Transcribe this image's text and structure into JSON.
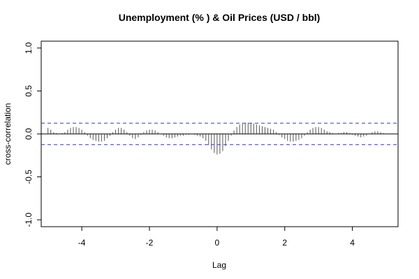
{
  "chart_data": {
    "type": "bar",
    "title": "Unemployment (% ) & Oil Prices (USD / bbl)",
    "xlabel": "Lag",
    "ylabel": "cross-correlation",
    "xlim": [
      -5.2,
      5.35
    ],
    "ylim": [
      -1.08,
      1.08
    ],
    "x_ticks": [
      -4,
      -2,
      0,
      2,
      4
    ],
    "y_ticks": [
      -1.0,
      -0.5,
      0.0,
      0.5,
      1.0
    ],
    "x_tick_labels": [
      "-4",
      "-2",
      "0",
      "2",
      "4"
    ],
    "y_tick_labels": [
      "-1.0",
      "-0.5",
      "0.0",
      "0.5",
      "1.0"
    ],
    "confidence_limit": 0.125,
    "colors": {
      "bars": "#555555",
      "confidence": "#3b3bd6",
      "axis": "#000000"
    },
    "series": [
      {
        "name": "cross-correlation",
        "x": [
          -5.0,
          -4.917,
          -4.833,
          -4.75,
          -4.667,
          -4.583,
          -4.5,
          -4.417,
          -4.333,
          -4.25,
          -4.167,
          -4.083,
          -4.0,
          -3.917,
          -3.833,
          -3.75,
          -3.667,
          -3.583,
          -3.5,
          -3.417,
          -3.333,
          -3.25,
          -3.167,
          -3.083,
          -3.0,
          -2.917,
          -2.833,
          -2.75,
          -2.667,
          -2.583,
          -2.5,
          -2.417,
          -2.333,
          -2.25,
          -2.167,
          -2.083,
          -2.0,
          -1.917,
          -1.833,
          -1.75,
          -1.667,
          -1.583,
          -1.5,
          -1.417,
          -1.333,
          -1.25,
          -1.167,
          -1.083,
          -1.0,
          -0.917,
          -0.833,
          -0.75,
          -0.667,
          -0.583,
          -0.5,
          -0.417,
          -0.333,
          -0.25,
          -0.167,
          -0.083,
          0.0,
          0.083,
          0.167,
          0.25,
          0.333,
          0.417,
          0.5,
          0.583,
          0.667,
          0.75,
          0.833,
          0.917,
          1.0,
          1.083,
          1.167,
          1.25,
          1.333,
          1.417,
          1.5,
          1.583,
          1.667,
          1.75,
          1.833,
          1.917,
          2.0,
          2.083,
          2.167,
          2.25,
          2.333,
          2.417,
          2.5,
          2.583,
          2.667,
          2.75,
          2.833,
          2.917,
          3.0,
          3.083,
          3.167,
          3.25,
          3.333,
          3.417,
          3.5,
          3.583,
          3.667,
          3.75,
          3.833,
          3.917,
          4.0,
          4.083,
          4.167,
          4.25,
          4.333,
          4.417,
          4.5,
          4.583,
          4.667,
          4.75,
          4.833,
          4.917,
          5.0
        ],
        "values": [
          0.07,
          0.05,
          0.02,
          0.01,
          0.0,
          0.01,
          0.02,
          0.05,
          0.07,
          0.08,
          0.08,
          0.07,
          0.05,
          0.02,
          -0.02,
          -0.05,
          -0.07,
          -0.08,
          -0.09,
          -0.09,
          -0.08,
          -0.05,
          -0.02,
          0.02,
          0.05,
          0.07,
          0.07,
          0.05,
          0.02,
          -0.02,
          -0.05,
          -0.06,
          -0.04,
          -0.01,
          0.02,
          0.04,
          0.05,
          0.05,
          0.04,
          0.02,
          0.0,
          -0.02,
          -0.04,
          -0.05,
          -0.05,
          -0.04,
          -0.03,
          -0.02,
          -0.02,
          -0.01,
          -0.01,
          0.0,
          -0.01,
          -0.02,
          -0.03,
          -0.05,
          -0.08,
          -0.13,
          -0.18,
          -0.22,
          -0.24,
          -0.23,
          -0.2,
          -0.14,
          -0.08,
          -0.02,
          0.04,
          0.08,
          0.11,
          0.12,
          0.13,
          0.13,
          0.13,
          0.12,
          0.11,
          0.1,
          0.09,
          0.08,
          0.07,
          0.06,
          0.05,
          0.02,
          -0.01,
          -0.04,
          -0.06,
          -0.08,
          -0.09,
          -0.09,
          -0.08,
          -0.07,
          -0.05,
          -0.02,
          0.02,
          0.05,
          0.07,
          0.08,
          0.08,
          0.07,
          0.05,
          0.03,
          0.02,
          0.01,
          0.0,
          0.01,
          0.01,
          0.02,
          0.02,
          0.01,
          -0.01,
          -0.02,
          -0.03,
          -0.04,
          -0.03,
          -0.02,
          0.0,
          0.02,
          0.03,
          0.03,
          0.02,
          0.01,
          0.0
        ]
      }
    ]
  }
}
